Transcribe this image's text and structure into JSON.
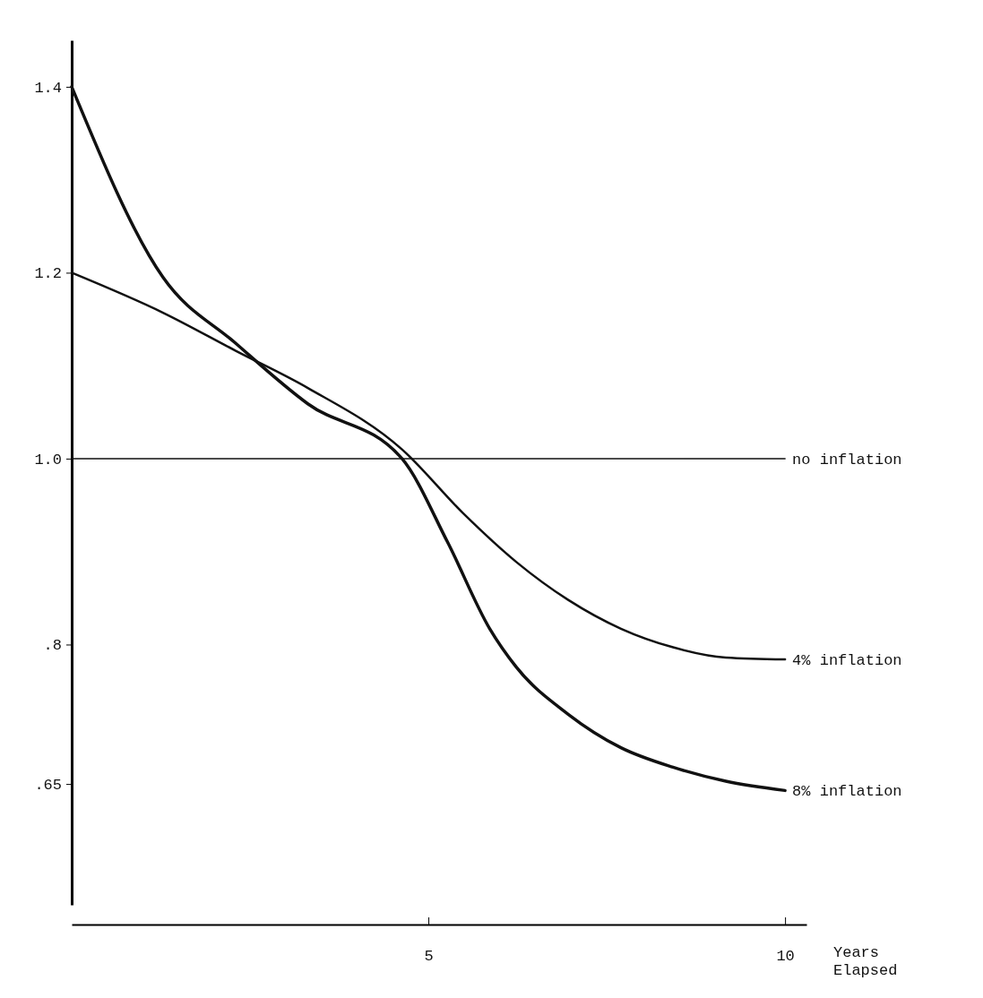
{
  "chart_data": {
    "type": "line",
    "xlabel": "Years Elapsed",
    "xlim": [
      0,
      10.3
    ],
    "xticks": [
      5,
      10
    ],
    "ylim": [
      0.52,
      1.45
    ],
    "yticks": [
      1.4,
      1.2,
      {
        "value": 1.0,
        "label": "1.0"
      },
      {
        "value": 0.8,
        "label": ".8"
      },
      {
        "value": 0.65,
        "label": ".65"
      }
    ],
    "grid": false,
    "legend": false,
    "marker": "none",
    "line_style": "solid",
    "series": [
      {
        "name": "no inflation",
        "color": "#111111",
        "x": [
          0,
          10
        ],
        "values": [
          1.0,
          1.0
        ]
      },
      {
        "name": "4% inflation",
        "color": "#111111",
        "x": [
          0,
          1.28,
          2.3,
          3.31,
          4.63,
          5.49,
          6.23,
          6.96,
          7.7,
          8.43,
          9.17,
          10
        ],
        "values": [
          1.2,
          1.157,
          1.116,
          1.076,
          1.01,
          0.941,
          0.889,
          0.848,
          0.817,
          0.797,
          0.786,
          0.784
        ]
      },
      {
        "name": "8% inflation",
        "color": "#111111",
        "x": [
          0,
          1.28,
          2.3,
          3.31,
          4.63,
          5.27,
          5.86,
          6.23,
          6.96,
          7.7,
          8.43,
          9.17,
          10
        ],
        "values": [
          1.4,
          1.195,
          1.124,
          1.059,
          1.0,
          0.91,
          0.817,
          0.776,
          0.725,
          0.689,
          0.668,
          0.653,
          0.643
        ]
      }
    ]
  }
}
